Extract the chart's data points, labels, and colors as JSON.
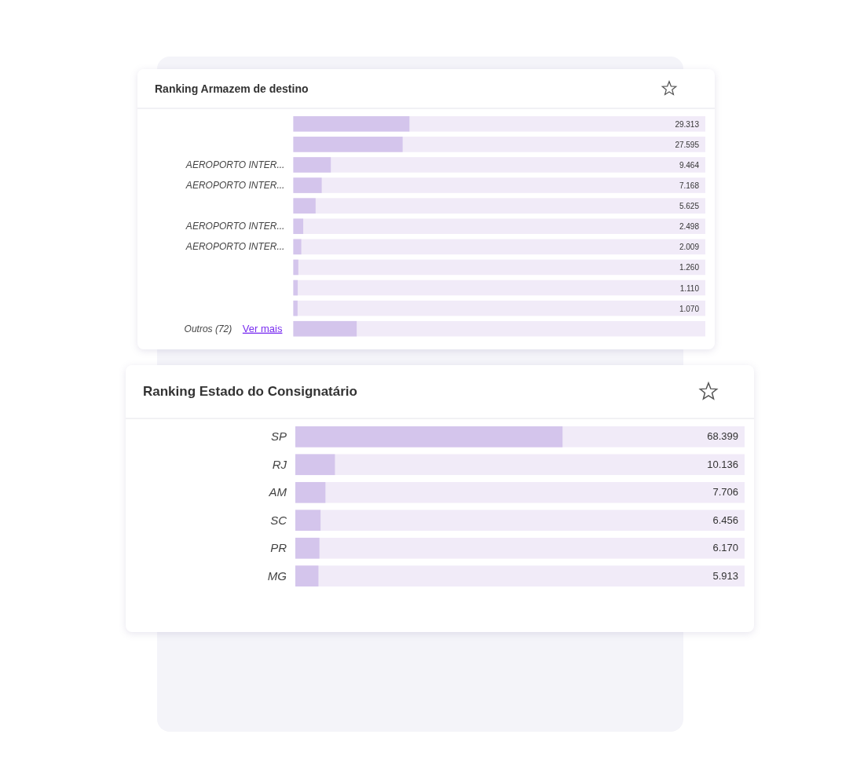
{
  "chart_data": [
    {
      "type": "bar",
      "orientation": "horizontal",
      "title": "Ranking Armazem de destino",
      "categories": [
        null,
        null,
        "AEROPORTO INTER...",
        "AEROPORTO INTER...",
        null,
        "AEROPORTO INTER...",
        "AEROPORTO INTER...",
        null,
        null,
        null,
        "Outros (72)"
      ],
      "values": [
        29313,
        27595,
        9464,
        7168,
        5625,
        2498,
        2009,
        1260,
        1110,
        1070,
        16000
      ],
      "value_labels": [
        "29.313",
        "27.595",
        "9.464",
        "7.168",
        "5.625",
        "2.498",
        "2.009",
        "1.260",
        "1.110",
        "1.070",
        null
      ],
      "color": "#d4c5ec",
      "xlim": [
        0,
        104000
      ],
      "tick_labels": "y",
      "annotations": [
        "Ver mais"
      ]
    },
    {
      "type": "bar",
      "orientation": "horizontal",
      "title": "Ranking Estado do Consignatário",
      "categories": [
        "SP",
        "RJ",
        "AM",
        "SC",
        "PR",
        "MG"
      ],
      "values": [
        68399,
        10136,
        7706,
        6456,
        6170,
        5913
      ],
      "value_labels": [
        "68.399",
        "10.136",
        "7.706",
        "6.456",
        "6.170",
        "5.913"
      ],
      "color": "#d4c5ec",
      "xlim": [
        0,
        115000
      ],
      "tick_labels": "y"
    }
  ]
}
